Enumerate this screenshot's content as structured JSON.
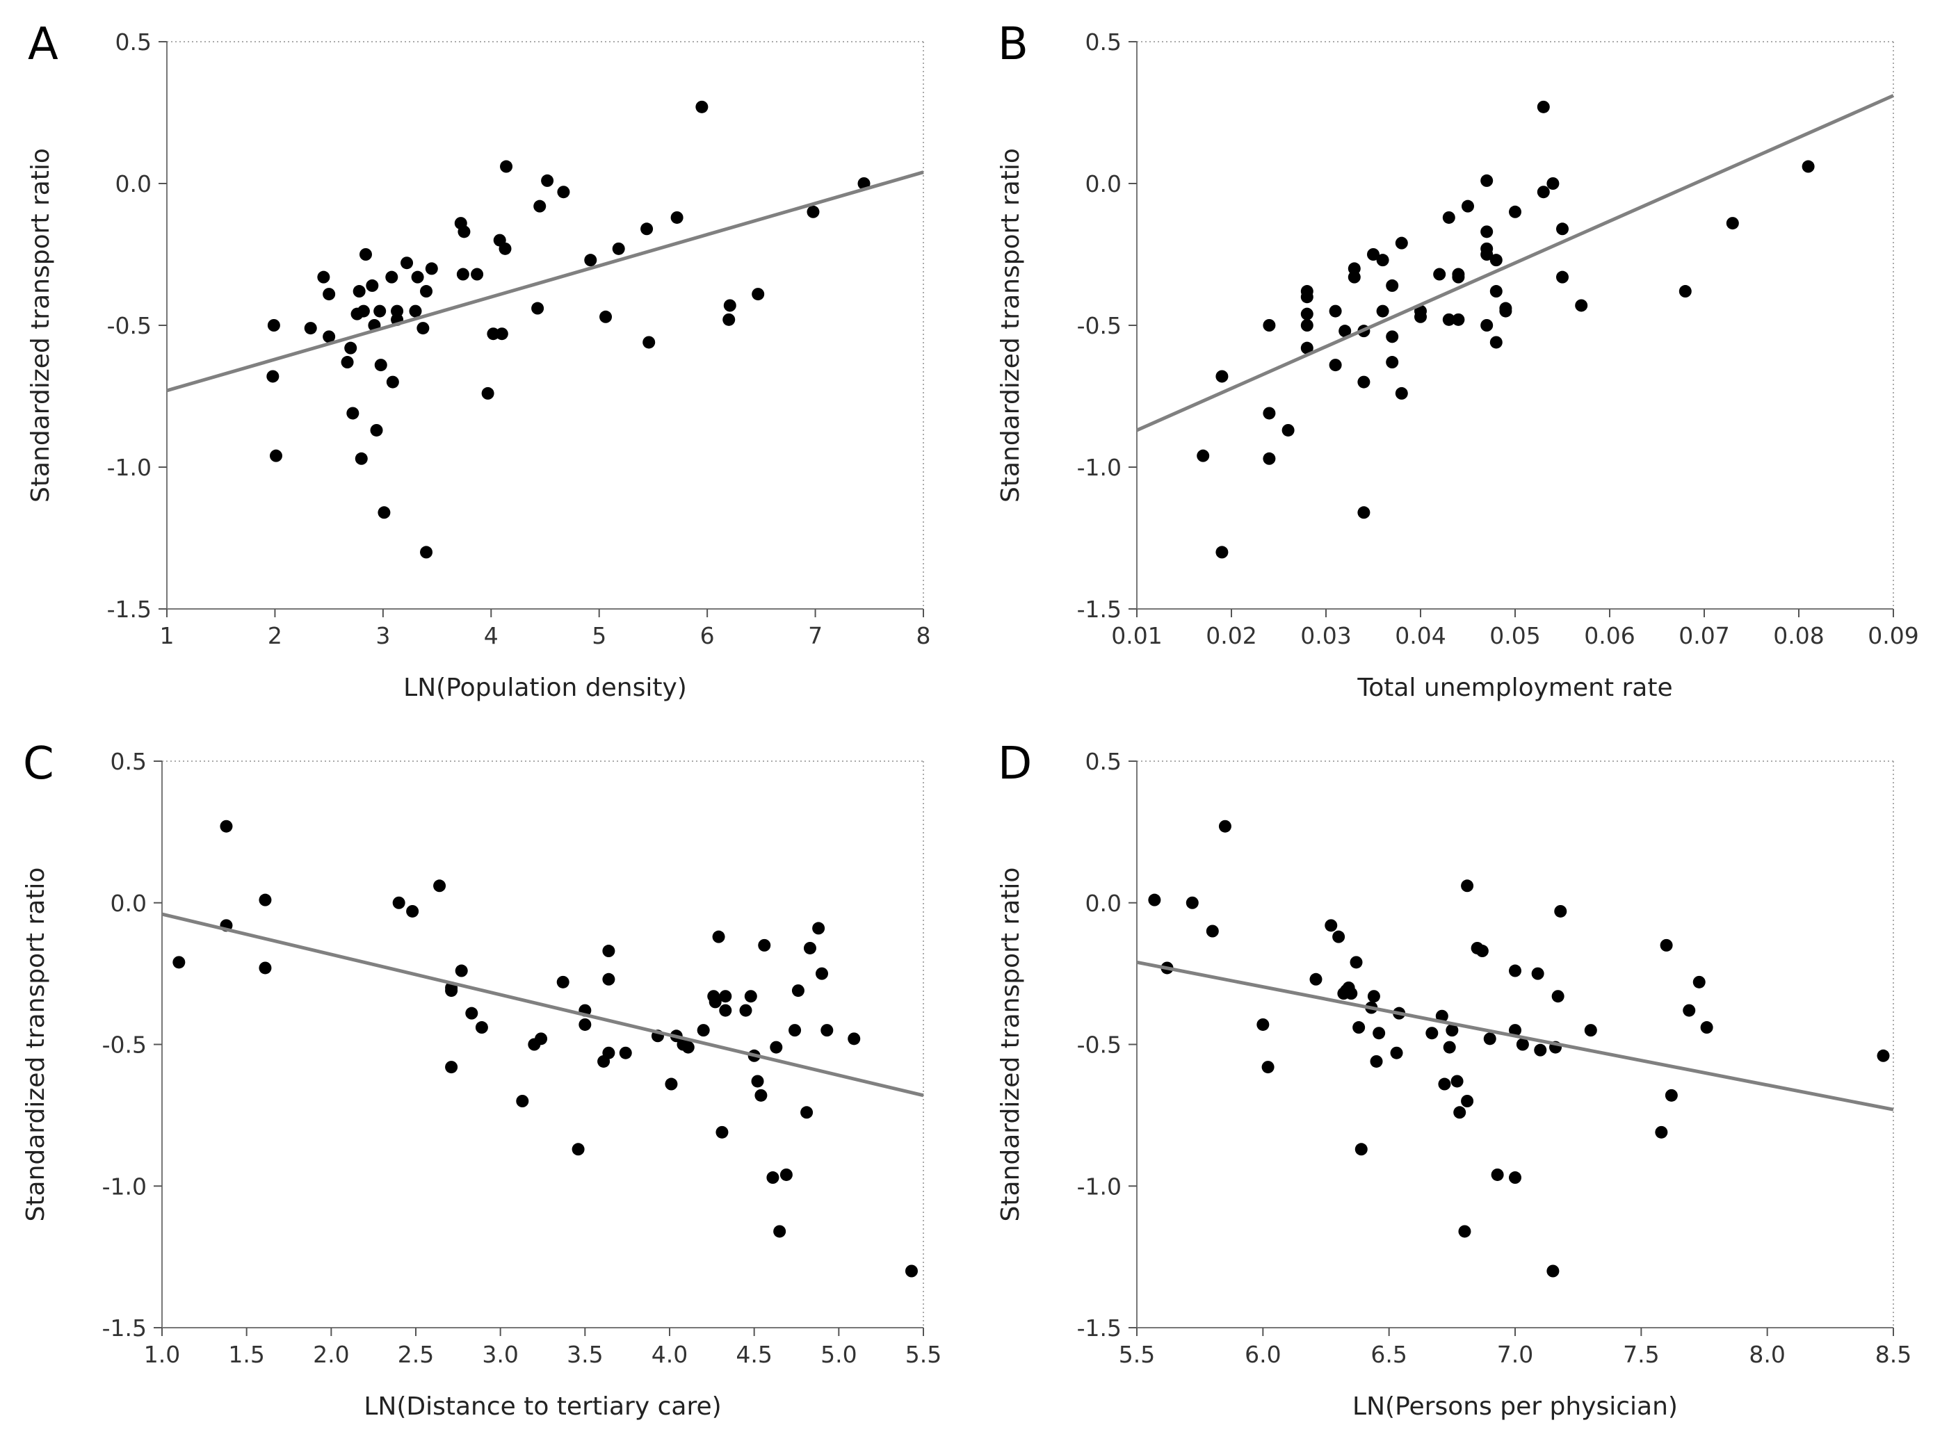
{
  "chart_data": [
    {
      "panel": "A",
      "type": "scatter",
      "xlabel": "LN(Population density)",
      "ylabel": "Standardized transport ratio",
      "xlim": [
        1,
        8
      ],
      "ylim": [
        -1.5,
        0.5
      ],
      "xticks": [
        1,
        2,
        3,
        4,
        5,
        6,
        7,
        8
      ],
      "xtick_labels": [
        "1",
        "2",
        "3",
        "4",
        "5",
        "6",
        "7",
        "8"
      ],
      "yticks": [
        0.5,
        0.0,
        -0.5,
        -1.0,
        -1.5
      ],
      "ytick_labels": [
        "0.5",
        "0.0",
        "-0.5",
        "-1.0",
        "-1.5"
      ],
      "fit_line": {
        "x": [
          1,
          8
        ],
        "y": [
          -0.73,
          0.04
        ]
      },
      "points": [
        [
          1.99,
          -0.5
        ],
        [
          1.98,
          -0.68
        ],
        [
          2.01,
          -0.96
        ],
        [
          2.33,
          -0.51
        ],
        [
          2.45,
          -0.33
        ],
        [
          2.5,
          -0.39
        ],
        [
          2.5,
          -0.54
        ],
        [
          2.67,
          -0.63
        ],
        [
          2.7,
          -0.58
        ],
        [
          2.72,
          -0.81
        ],
        [
          2.76,
          -0.46
        ],
        [
          2.78,
          -0.38
        ],
        [
          2.8,
          -0.97
        ],
        [
          2.82,
          -0.45
        ],
        [
          2.84,
          -0.25
        ],
        [
          2.9,
          -0.36
        ],
        [
          2.92,
          -0.5
        ],
        [
          2.94,
          -0.87
        ],
        [
          2.97,
          -0.45
        ],
        [
          2.98,
          -0.64
        ],
        [
          3.01,
          -1.16
        ],
        [
          3.08,
          -0.33
        ],
        [
          3.09,
          -0.7
        ],
        [
          3.13,
          -0.45
        ],
        [
          3.13,
          -0.48
        ],
        [
          3.22,
          -0.28
        ],
        [
          3.3,
          -0.45
        ],
        [
          3.32,
          -0.33
        ],
        [
          3.37,
          -0.51
        ],
        [
          3.4,
          -1.3
        ],
        [
          3.4,
          -0.38
        ],
        [
          3.45,
          -0.3
        ],
        [
          3.72,
          -0.14
        ],
        [
          3.74,
          -0.32
        ],
        [
          3.75,
          -0.17
        ],
        [
          3.87,
          -0.32
        ],
        [
          3.97,
          -0.74
        ],
        [
          4.02,
          -0.53
        ],
        [
          4.08,
          -0.2
        ],
        [
          4.1,
          -0.53
        ],
        [
          4.13,
          -0.23
        ],
        [
          4.14,
          0.06
        ],
        [
          4.43,
          -0.44
        ],
        [
          4.45,
          -0.08
        ],
        [
          4.52,
          0.01
        ],
        [
          4.67,
          -0.03
        ],
        [
          4.92,
          -0.27
        ],
        [
          5.06,
          -0.47
        ],
        [
          5.18,
          -0.23
        ],
        [
          5.44,
          -0.16
        ],
        [
          5.46,
          -0.56
        ],
        [
          5.72,
          -0.12
        ],
        [
          5.95,
          0.27
        ],
        [
          6.2,
          -0.48
        ],
        [
          6.21,
          -0.43
        ],
        [
          6.47,
          -0.39
        ],
        [
          6.98,
          -0.1
        ],
        [
          7.45,
          0.0
        ]
      ]
    },
    {
      "panel": "B",
      "type": "scatter",
      "xlabel": "Total unemployment rate",
      "ylabel": "Standardized transport ratio",
      "xlim": [
        0.01,
        0.09
      ],
      "ylim": [
        -1.5,
        0.5
      ],
      "xticks": [
        0.01,
        0.02,
        0.03,
        0.04,
        0.05,
        0.06,
        0.07,
        0.08,
        0.09
      ],
      "xtick_labels": [
        "0.01",
        "0.02",
        "0.03",
        "0.04",
        "0.05",
        "0.06",
        "0.07",
        "0.08",
        "0.09"
      ],
      "yticks": [
        0.5,
        0.0,
        -0.5,
        -1.0,
        -1.5
      ],
      "ytick_labels": [
        "0.5",
        "0.0",
        "-0.5",
        "-1.0",
        "-1.5"
      ],
      "fit_line": {
        "x": [
          0.01,
          0.09
        ],
        "y": [
          -0.87,
          0.31
        ]
      },
      "points": [
        [
          0.017,
          -0.96
        ],
        [
          0.019,
          -0.68
        ],
        [
          0.019,
          -1.3
        ],
        [
          0.024,
          -0.5
        ],
        [
          0.024,
          -0.81
        ],
        [
          0.024,
          -0.97
        ],
        [
          0.026,
          -0.87
        ],
        [
          0.028,
          -0.38
        ],
        [
          0.028,
          -0.4
        ],
        [
          0.028,
          -0.46
        ],
        [
          0.028,
          -0.5
        ],
        [
          0.028,
          -0.58
        ],
        [
          0.031,
          -0.45
        ],
        [
          0.031,
          -0.64
        ],
        [
          0.032,
          -0.52
        ],
        [
          0.033,
          -0.3
        ],
        [
          0.033,
          -0.33
        ],
        [
          0.034,
          -0.52
        ],
        [
          0.034,
          -0.7
        ],
        [
          0.034,
          -1.16
        ],
        [
          0.035,
          -0.25
        ],
        [
          0.036,
          -0.27
        ],
        [
          0.036,
          -0.45
        ],
        [
          0.037,
          -0.36
        ],
        [
          0.037,
          -0.54
        ],
        [
          0.037,
          -0.63
        ],
        [
          0.038,
          -0.21
        ],
        [
          0.038,
          -0.74
        ],
        [
          0.04,
          -0.45
        ],
        [
          0.04,
          -0.47
        ],
        [
          0.042,
          -0.32
        ],
        [
          0.043,
          -0.12
        ],
        [
          0.043,
          -0.48
        ],
        [
          0.044,
          -0.32
        ],
        [
          0.044,
          -0.33
        ],
        [
          0.044,
          -0.48
        ],
        [
          0.045,
          -0.08
        ],
        [
          0.047,
          0.01
        ],
        [
          0.047,
          -0.17
        ],
        [
          0.047,
          -0.23
        ],
        [
          0.047,
          -0.25
        ],
        [
          0.047,
          -0.5
        ],
        [
          0.048,
          -0.27
        ],
        [
          0.048,
          -0.38
        ],
        [
          0.048,
          -0.56
        ],
        [
          0.049,
          -0.44
        ],
        [
          0.049,
          -0.45
        ],
        [
          0.05,
          -0.1
        ],
        [
          0.053,
          0.27
        ],
        [
          0.053,
          -0.03
        ],
        [
          0.054,
          0.0
        ],
        [
          0.055,
          -0.16
        ],
        [
          0.055,
          -0.33
        ],
        [
          0.057,
          -0.43
        ],
        [
          0.068,
          -0.38
        ],
        [
          0.073,
          -0.14
        ],
        [
          0.081,
          0.06
        ]
      ]
    },
    {
      "panel": "C",
      "type": "scatter",
      "xlabel": "LN(Distance to tertiary care)",
      "ylabel": "Standardized transport ratio",
      "xlim": [
        1.0,
        5.5
      ],
      "ylim": [
        -1.5,
        0.5
      ],
      "xticks": [
        1.0,
        1.5,
        2.0,
        2.5,
        3.0,
        3.5,
        4.0,
        4.5,
        5.0,
        5.5
      ],
      "xtick_labels": [
        "1.0",
        "1.5",
        "2.0",
        "2.5",
        "3.0",
        "3.5",
        "4.0",
        "4.5",
        "5.0",
        "5.5"
      ],
      "yticks": [
        0.5,
        0.0,
        -0.5,
        -1.0,
        -1.5
      ],
      "ytick_labels": [
        "0.5",
        "0.0",
        "-0.5",
        "-1.0",
        "-1.5"
      ],
      "fit_line": {
        "x": [
          1.0,
          5.5
        ],
        "y": [
          -0.04,
          -0.68
        ]
      },
      "points": [
        [
          1.1,
          -0.21
        ],
        [
          1.38,
          0.27
        ],
        [
          1.38,
          -0.08
        ],
        [
          1.61,
          0.01
        ],
        [
          1.61,
          -0.23
        ],
        [
          2.4,
          0.0
        ],
        [
          2.48,
          -0.03
        ],
        [
          2.64,
          0.06
        ],
        [
          2.71,
          -0.31
        ],
        [
          2.71,
          -0.3
        ],
        [
          2.71,
          -0.58
        ],
        [
          2.77,
          -0.24
        ],
        [
          2.83,
          -0.39
        ],
        [
          2.89,
          -0.44
        ],
        [
          3.13,
          -0.7
        ],
        [
          3.2,
          -0.5
        ],
        [
          3.24,
          -0.48
        ],
        [
          3.37,
          -0.28
        ],
        [
          3.46,
          -0.87
        ],
        [
          3.5,
          -0.38
        ],
        [
          3.5,
          -0.43
        ],
        [
          3.61,
          -0.56
        ],
        [
          3.64,
          -0.53
        ],
        [
          3.64,
          -0.27
        ],
        [
          3.64,
          -0.17
        ],
        [
          3.74,
          -0.53
        ],
        [
          3.93,
          -0.47
        ],
        [
          4.01,
          -0.64
        ],
        [
          4.04,
          -0.47
        ],
        [
          4.08,
          -0.5
        ],
        [
          4.11,
          -0.51
        ],
        [
          4.2,
          -0.45
        ],
        [
          4.26,
          -0.33
        ],
        [
          4.27,
          -0.35
        ],
        [
          4.29,
          -0.12
        ],
        [
          4.31,
          -0.81
        ],
        [
          4.33,
          -0.38
        ],
        [
          4.33,
          -0.33
        ],
        [
          4.45,
          -0.38
        ],
        [
          4.48,
          -0.33
        ],
        [
          4.5,
          -0.54
        ],
        [
          4.52,
          -0.63
        ],
        [
          4.54,
          -0.68
        ],
        [
          4.56,
          -0.15
        ],
        [
          4.61,
          -0.97
        ],
        [
          4.63,
          -0.51
        ],
        [
          4.65,
          -1.16
        ],
        [
          4.69,
          -0.96
        ],
        [
          4.74,
          -0.45
        ],
        [
          4.76,
          -0.31
        ],
        [
          4.81,
          -0.74
        ],
        [
          4.83,
          -0.16
        ],
        [
          4.88,
          -0.09
        ],
        [
          4.9,
          -0.25
        ],
        [
          4.93,
          -0.45
        ],
        [
          5.09,
          -0.48
        ],
        [
          5.43,
          -1.3
        ]
      ]
    },
    {
      "panel": "D",
      "type": "scatter",
      "xlabel": "LN(Persons per physician)",
      "ylabel": "Standardized transport ratio",
      "xlim": [
        5.5,
        8.5
      ],
      "ylim": [
        -1.5,
        0.5
      ],
      "xticks": [
        5.5,
        6.0,
        6.5,
        7.0,
        7.5,
        8.0,
        8.5
      ],
      "xtick_labels": [
        "5.5",
        "6.0",
        "6.5",
        "7.0",
        "7.5",
        "8.0",
        "8.5"
      ],
      "yticks": [
        0.5,
        0.0,
        -0.5,
        -1.0,
        -1.5
      ],
      "ytick_labels": [
        "0.5",
        "0.0",
        "-0.5",
        "-1.0",
        "-1.5"
      ],
      "fit_line": {
        "x": [
          5.5,
          8.5
        ],
        "y": [
          -0.21,
          -0.73
        ]
      },
      "points": [
        [
          5.57,
          0.01
        ],
        [
          5.62,
          -0.23
        ],
        [
          5.72,
          0.0
        ],
        [
          5.8,
          -0.1
        ],
        [
          5.85,
          0.27
        ],
        [
          6.0,
          -0.43
        ],
        [
          6.02,
          -0.58
        ],
        [
          6.21,
          -0.27
        ],
        [
          6.27,
          -0.08
        ],
        [
          6.3,
          -0.12
        ],
        [
          6.32,
          -0.32
        ],
        [
          6.33,
          -0.31
        ],
        [
          6.34,
          -0.3
        ],
        [
          6.35,
          -0.32
        ],
        [
          6.37,
          -0.21
        ],
        [
          6.38,
          -0.44
        ],
        [
          6.39,
          -0.87
        ],
        [
          6.43,
          -0.37
        ],
        [
          6.44,
          -0.33
        ],
        [
          6.45,
          -0.56
        ],
        [
          6.46,
          -0.46
        ],
        [
          6.53,
          -0.53
        ],
        [
          6.54,
          -0.39
        ],
        [
          6.67,
          -0.46
        ],
        [
          6.71,
          -0.4
        ],
        [
          6.72,
          -0.64
        ],
        [
          6.74,
          -0.51
        ],
        [
          6.75,
          -0.45
        ],
        [
          6.77,
          -0.63
        ],
        [
          6.78,
          -0.74
        ],
        [
          6.8,
          -1.16
        ],
        [
          6.81,
          -0.7
        ],
        [
          6.81,
          0.06
        ],
        [
          6.85,
          -0.16
        ],
        [
          6.87,
          -0.17
        ],
        [
          6.9,
          -0.48
        ],
        [
          6.93,
          -0.96
        ],
        [
          7.0,
          -0.97
        ],
        [
          7.0,
          -0.24
        ],
        [
          7.0,
          -0.45
        ],
        [
          7.03,
          -0.5
        ],
        [
          7.09,
          -0.25
        ],
        [
          7.1,
          -0.52
        ],
        [
          7.15,
          -1.3
        ],
        [
          7.16,
          -0.51
        ],
        [
          7.17,
          -0.33
        ],
        [
          7.18,
          -0.03
        ],
        [
          7.3,
          -0.45
        ],
        [
          7.58,
          -0.81
        ],
        [
          7.6,
          -0.15
        ],
        [
          7.62,
          -0.68
        ],
        [
          7.69,
          -0.38
        ],
        [
          7.73,
          -0.28
        ],
        [
          7.76,
          -0.44
        ],
        [
          8.46,
          -0.54
        ]
      ]
    }
  ]
}
